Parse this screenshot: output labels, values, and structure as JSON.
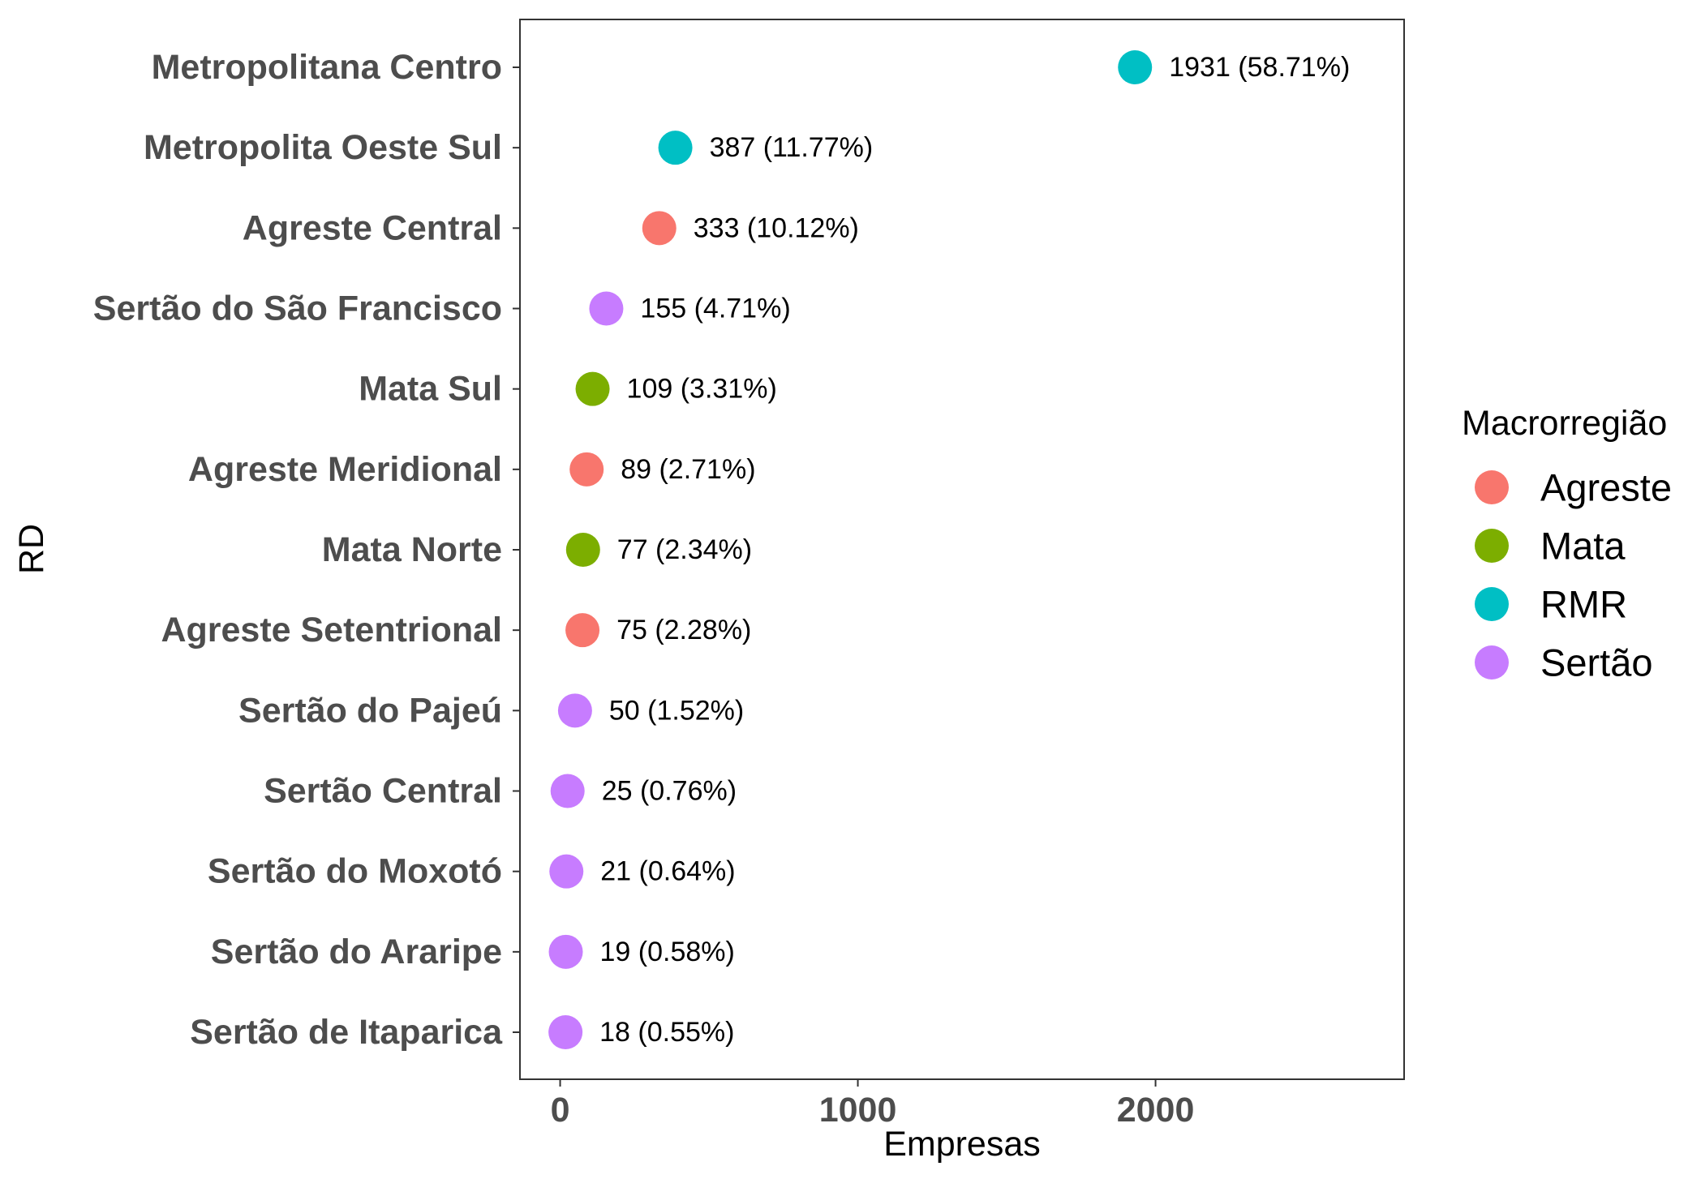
{
  "chart_data": {
    "type": "scatter",
    "orientation": "horizontal",
    "title": "",
    "xlabel": "Empresas",
    "ylabel": "RD",
    "xlim": [
      -135,
      2835
    ],
    "xticks": [
      0,
      1000,
      2000
    ],
    "grid": false,
    "legend": {
      "title": "Macrorregião",
      "position": "right",
      "entries": [
        {
          "name": "Agreste",
          "color": "#F8766D"
        },
        {
          "name": "Mata",
          "color": "#7CAE00"
        },
        {
          "name": "RMR",
          "color": "#00BFC4"
        },
        {
          "name": "Sertão",
          "color": "#C77CFF"
        }
      ]
    },
    "points": [
      {
        "category": "Metropolitana Centro",
        "value": 1931,
        "label": "1931 (58.71%)",
        "group": "RMR"
      },
      {
        "category": "Metropolita Oeste Sul",
        "value": 387,
        "label": "387 (11.77%)",
        "group": "RMR"
      },
      {
        "category": "Agreste Central",
        "value": 333,
        "label": "333 (10.12%)",
        "group": "Agreste"
      },
      {
        "category": "Sertão do São Francisco",
        "value": 155,
        "label": "155 (4.71%)",
        "group": "Sertão"
      },
      {
        "category": "Mata Sul",
        "value": 109,
        "label": "109 (3.31%)",
        "group": "Mata"
      },
      {
        "category": "Agreste Meridional",
        "value": 89,
        "label": "89 (2.71%)",
        "group": "Agreste"
      },
      {
        "category": "Mata Norte",
        "value": 77,
        "label": "77 (2.34%)",
        "group": "Mata"
      },
      {
        "category": "Agreste Setentrional",
        "value": 75,
        "label": "75 (2.28%)",
        "group": "Agreste"
      },
      {
        "category": "Sertão do Pajeú",
        "value": 50,
        "label": "50 (1.52%)",
        "group": "Sertão"
      },
      {
        "category": "Sertão Central",
        "value": 25,
        "label": "25 (0.76%)",
        "group": "Sertão"
      },
      {
        "category": "Sertão do Moxotó",
        "value": 21,
        "label": "21 (0.64%)",
        "group": "Sertão"
      },
      {
        "category": "Sertão do Araripe",
        "value": 19,
        "label": "19 (0.58%)",
        "group": "Sertão"
      },
      {
        "category": "Sertão de Itaparica",
        "value": 18,
        "label": "18 (0.55%)",
        "group": "Sertão"
      }
    ]
  }
}
